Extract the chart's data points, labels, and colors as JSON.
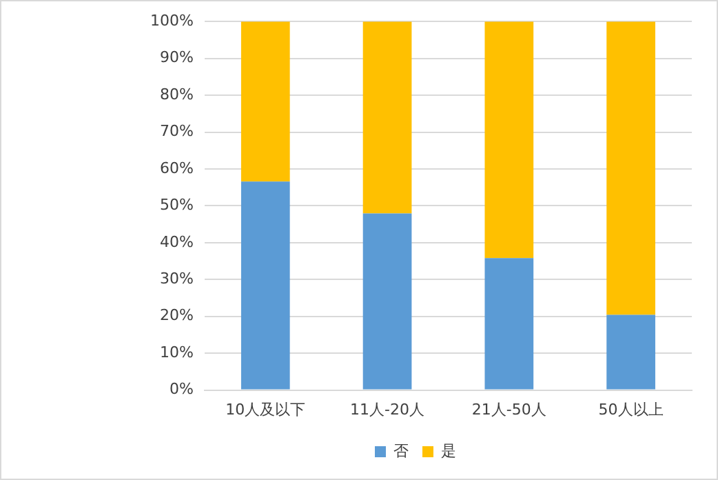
{
  "chart_data": {
    "type": "bar",
    "stacked": true,
    "categories": [
      "10人及以下",
      "11人-20人",
      "21人-50人",
      "50人以上"
    ],
    "series": [
      {
        "name": "否",
        "color": "#5b9bd5",
        "values": [
          56.6,
          47.9,
          35.8,
          20.4
        ]
      },
      {
        "name": "是",
        "color": "#ffc000",
        "values": [
          43.4,
          52.1,
          64.2,
          79.6
        ]
      }
    ],
    "ylim": [
      0,
      100
    ],
    "yticks": [
      {
        "value": 0,
        "label": "0%"
      },
      {
        "value": 10,
        "label": "10%"
      },
      {
        "value": 20,
        "label": "20%"
      },
      {
        "value": 30,
        "label": "30%"
      },
      {
        "value": 40,
        "label": "40%"
      },
      {
        "value": 50,
        "label": "50%"
      },
      {
        "value": 60,
        "label": "60%"
      },
      {
        "value": 70,
        "label": "70%"
      },
      {
        "value": 80,
        "label": "80%"
      },
      {
        "value": 90,
        "label": "90%"
      },
      {
        "value": 100,
        "label": "100%"
      }
    ],
    "grid": "y",
    "legend": "bottom"
  }
}
